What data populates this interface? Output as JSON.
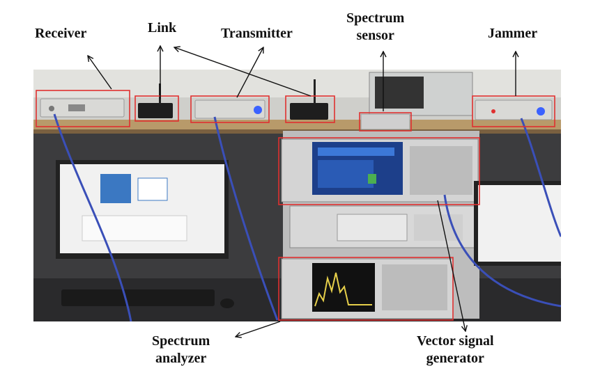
{
  "labels": {
    "receiver": "Receiver",
    "link": "Link",
    "transmitter": "Transmitter",
    "spectrum_sensor_line1": "Spectrum",
    "spectrum_sensor_line2": "sensor",
    "jammer": "Jammer",
    "spectrum_analyzer_line1": "Spectrum",
    "spectrum_analyzer_line2": "analyzer",
    "vector_signal_generator_line1": "Vector signal",
    "vector_signal_generator_line2": "generator"
  },
  "colors": {
    "highlight_box": "#e03030",
    "arrow": "#111111",
    "cable": "#3a4fb8"
  }
}
